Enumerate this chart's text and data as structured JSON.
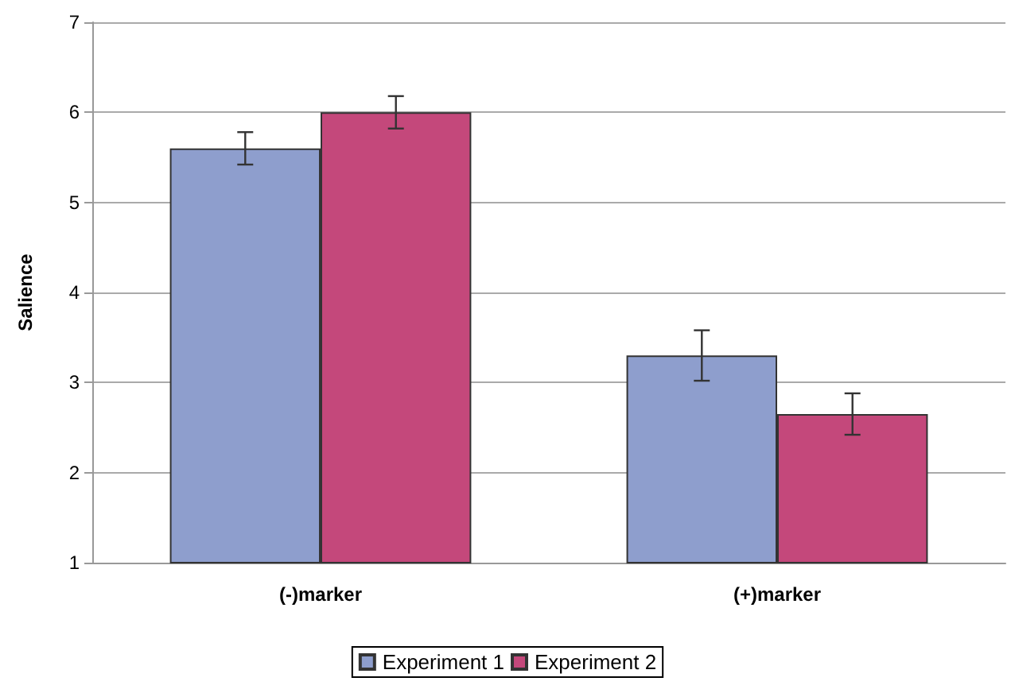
{
  "chart_data": {
    "type": "bar",
    "ylabel": "Salience",
    "categories": [
      "(-)marker",
      "(+)marker"
    ],
    "series": [
      {
        "name": "Experiment 1",
        "color": "#8e9ecd",
        "values": [
          5.6,
          3.3
        ],
        "errors": [
          0.18,
          0.28
        ]
      },
      {
        "name": "Experiment 2",
        "color": "#c4487b",
        "values": [
          6.0,
          2.65
        ],
        "errors": [
          0.18,
          0.23
        ]
      }
    ],
    "ylim": [
      1,
      7
    ],
    "yticks": [
      1,
      2,
      3,
      4,
      5,
      6,
      7
    ],
    "grid": "y",
    "legend": "bottom"
  }
}
